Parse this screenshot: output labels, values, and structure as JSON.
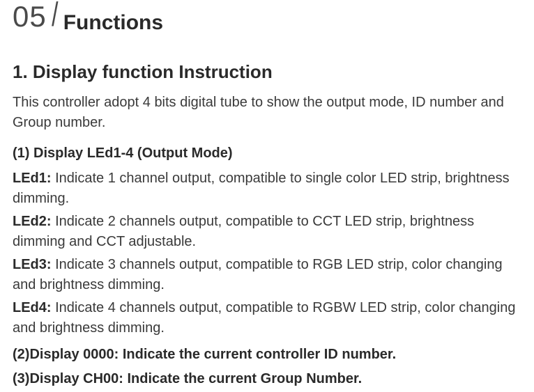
{
  "header": {
    "section_number": "05",
    "section_title": "Functions"
  },
  "subsection": {
    "title": "1. Display function Instruction",
    "intro": "This controller adopt 4 bits digital tube to show the output mode, ID number and Group number."
  },
  "item1": {
    "heading": "(1)  Display  LEd1-4 (Output Mode)",
    "rows": [
      {
        "label": "LEd1:",
        "desc": " Indicate 1 channel output, compatible to single color LED strip, brightness dimming."
      },
      {
        "label": "LEd2:",
        "desc": " Indicate 2 channels output, compatible to CCT LED strip, brightness dimming and CCT adjustable."
      },
      {
        "label": "LEd3:",
        "desc": " Indicate 3 channels output, compatible to RGB LED strip, color changing and brightness dimming."
      },
      {
        "label": "LEd4:",
        "desc": " Indicate 4 channels output, compatible to RGBW LED strip, color changing and brightness dimming."
      }
    ]
  },
  "item2": {
    "heading": "(2)Display 0000: Indicate the current controller ID number."
  },
  "item3": {
    "heading": "(3)Display CH00: Indicate the current Group Number."
  }
}
